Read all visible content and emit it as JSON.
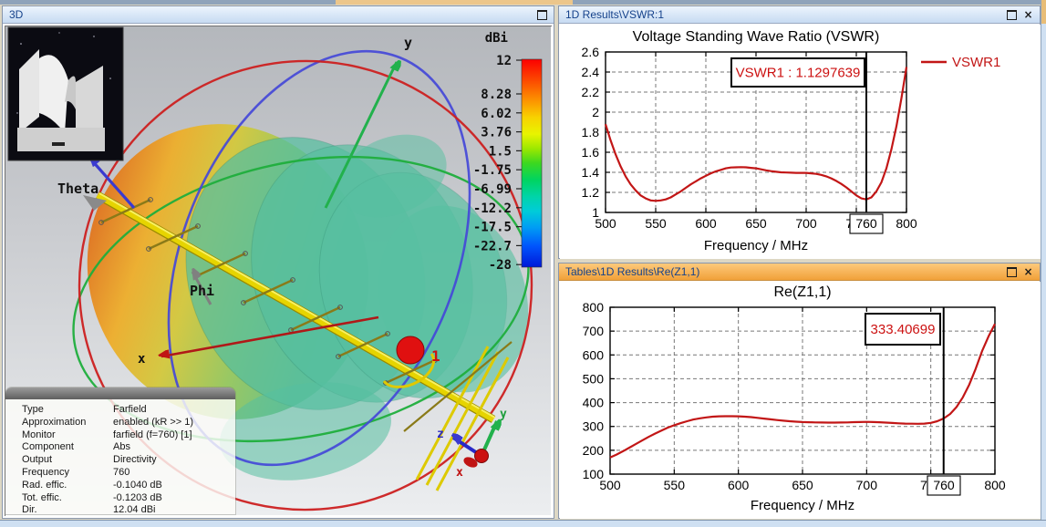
{
  "window": {
    "panel3d_title": "3D",
    "vswr_panel_title": "1D Results\\VSWR:1",
    "rez_panel_title": "Tables\\1D Results\\Re(Z1,1)",
    "close_glyph": "×"
  },
  "scene3d": {
    "colorbar": {
      "title": "dBi",
      "ticks": [
        "12",
        "8.28",
        "6.02",
        "3.76",
        "1.5",
        "-1.75",
        "-6.99",
        "-12.2",
        "-17.5",
        "-22.7",
        "-28"
      ]
    },
    "labels": {
      "theta": "Theta",
      "phi": "Phi",
      "x_axis": "x",
      "y_axis": "y",
      "port": "1",
      "triad_x": "x",
      "triad_y": "y",
      "triad_z": "z"
    },
    "info_table": {
      "rows": [
        {
          "label": "Type",
          "value": "Farfield"
        },
        {
          "label": "Approximation",
          "value": "enabled (kR >> 1)"
        },
        {
          "label": "Monitor",
          "value": "farfield (f=760) [1]"
        },
        {
          "label": "Component",
          "value": "Abs"
        },
        {
          "label": "Output",
          "value": "Directivity"
        },
        {
          "label": "Frequency",
          "value": "760"
        },
        {
          "label": "Rad. effic.",
          "value": "-0.1040 dB"
        },
        {
          "label": "Tot. effic.",
          "value": "-0.1203 dB"
        },
        {
          "label": "Dir.",
          "value": "12.04 dBi"
        }
      ]
    }
  },
  "chart_data": [
    {
      "type": "line",
      "title": "Voltage Standing Wave Ratio (VSWR)",
      "xlabel": "Frequency / MHz",
      "ylabel": "",
      "xlim": [
        500,
        800
      ],
      "ylim": [
        1,
        2.6
      ],
      "xticks": [
        500,
        550,
        600,
        650,
        700,
        750,
        800
      ],
      "yticks": [
        1,
        1.2,
        1.4,
        1.6,
        1.8,
        2,
        2.2,
        2.4,
        2.6
      ],
      "ytick_labels": [
        "1",
        "1.2",
        "1.4",
        "1.6",
        "1.8",
        "2",
        "2.2",
        "2.4",
        "2.6"
      ],
      "grid": true,
      "legend_position": "right-outside",
      "line_color": "#c21616",
      "cursor": {
        "x": 760,
        "label": "760"
      },
      "annotation": "VSWR1 : 1.1297639",
      "series": [
        {
          "name": "VSWR1",
          "x_start": 500,
          "x_step": 5,
          "y": [
            1.88,
            1.72,
            1.58,
            1.46,
            1.36,
            1.28,
            1.22,
            1.17,
            1.14,
            1.12,
            1.115,
            1.12,
            1.13,
            1.15,
            1.18,
            1.21,
            1.245,
            1.28,
            1.31,
            1.34,
            1.365,
            1.39,
            1.41,
            1.425,
            1.44,
            1.448,
            1.45,
            1.452,
            1.45,
            1.445,
            1.44,
            1.43,
            1.42,
            1.412,
            1.405,
            1.4,
            1.398,
            1.396,
            1.395,
            1.395,
            1.395,
            1.39,
            1.385,
            1.375,
            1.36,
            1.34,
            1.315,
            1.285,
            1.25,
            1.21,
            1.17,
            1.14,
            1.13,
            1.15,
            1.21,
            1.3,
            1.44,
            1.63,
            1.86,
            2.14,
            2.45
          ]
        }
      ]
    },
    {
      "type": "line",
      "title": "Re(Z1,1)",
      "xlabel": "Frequency / MHz",
      "ylabel": "",
      "xlim": [
        500,
        800
      ],
      "ylim": [
        100,
        800
      ],
      "xticks": [
        500,
        550,
        600,
        650,
        700,
        750,
        800
      ],
      "yticks": [
        100,
        200,
        300,
        400,
        500,
        600,
        700,
        800
      ],
      "ytick_labels": [
        "100",
        "200",
        "300",
        "400",
        "500",
        "600",
        "700",
        "800"
      ],
      "grid": true,
      "legend_position": "none",
      "line_color": "#c21616",
      "cursor": {
        "x": 760,
        "label": "760"
      },
      "annotation": "333.40699",
      "series": [
        {
          "name": "Re(Z1,1)",
          "x_start": 500,
          "x_step": 5,
          "y": [
            170,
            182,
            196,
            211,
            226,
            241,
            256,
            270,
            283,
            295,
            305,
            314,
            322,
            329,
            334,
            338,
            341,
            342.5,
            343,
            343,
            342.5,
            341,
            339,
            336,
            333,
            330,
            327,
            324,
            322,
            320,
            318.5,
            317.5,
            317,
            316.5,
            316,
            316,
            316.5,
            317,
            318,
            318.5,
            319,
            318.5,
            317.5,
            316,
            314.5,
            313,
            312,
            311.5,
            311,
            312,
            315,
            322,
            333.4,
            352,
            381,
            422,
            476,
            542,
            616,
            678,
            730
          ]
        }
      ]
    }
  ]
}
